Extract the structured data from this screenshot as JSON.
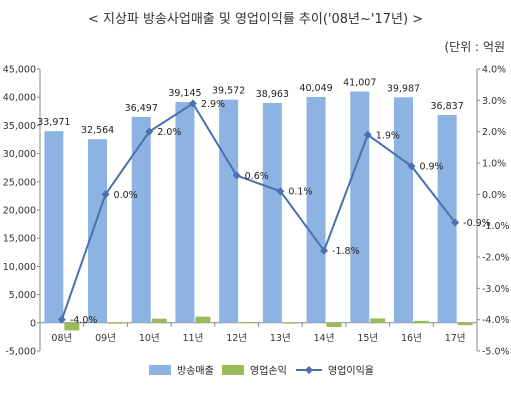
{
  "chart_data": {
    "type": "bar",
    "title": "< 지상파 방송사업매출 및 영업이익률 추이('08년~'17년) >",
    "unit_label": "(단위 : 억원",
    "categories": [
      "08년",
      "09년",
      "10년",
      "11년",
      "12년",
      "13년",
      "14년",
      "15년",
      "16년",
      "17년"
    ],
    "left_axis": {
      "ylim": [
        -5000,
        45000
      ],
      "ticks": [
        "-5,000",
        "0",
        "5,000",
        "10,000",
        "15,000",
        "20,000",
        "25,000",
        "30,000",
        "35,000",
        "40,000",
        "45,000"
      ],
      "tick_values": [
        -5000,
        0,
        5000,
        10000,
        15000,
        20000,
        25000,
        30000,
        35000,
        40000,
        45000
      ]
    },
    "right_axis": {
      "ylim": [
        -5.0,
        4.0
      ],
      "ticks": [
        "-5.0%",
        "-4.0%",
        "-3.0%",
        "-2.0%",
        "-1.0%",
        "0.0%",
        "1.0%",
        "2.0%",
        "3.0%",
        "4.0%"
      ],
      "tick_values": [
        -5,
        -4,
        -3,
        -2,
        -1,
        0,
        1,
        2,
        3,
        4
      ]
    },
    "series": [
      {
        "name": "방송매출",
        "type": "bar",
        "axis": "left",
        "color": "#8db3e2",
        "values": [
          33971,
          32564,
          36497,
          39145,
          39572,
          38963,
          40049,
          41007,
          39987,
          36837
        ],
        "labels": [
          "33,971",
          "32,564",
          "36,497",
          "39,145",
          "39,572",
          "38,963",
          "40,049",
          "41,007",
          "39,987",
          "36,837"
        ]
      },
      {
        "name": "영업손익",
        "type": "bar",
        "axis": "left",
        "color": "#9bbb59",
        "values": [
          -1350,
          20,
          730,
          1100,
          120,
          30,
          -740,
          780,
          350,
          -430
        ]
      },
      {
        "name": "영업이익율",
        "type": "line",
        "axis": "right",
        "color": "#4a70b0",
        "values": [
          -4.0,
          0.0,
          2.0,
          2.9,
          0.6,
          0.1,
          -1.8,
          1.9,
          0.9,
          -0.9
        ],
        "labels": [
          "-4.0%",
          "0.0%",
          "2.0%",
          "2.9%",
          "0.6%",
          "0.1%",
          "-1.8%",
          "1.9%",
          "0.9%",
          "-0.9%"
        ]
      }
    ],
    "legend_position": "bottom",
    "grid": false
  }
}
